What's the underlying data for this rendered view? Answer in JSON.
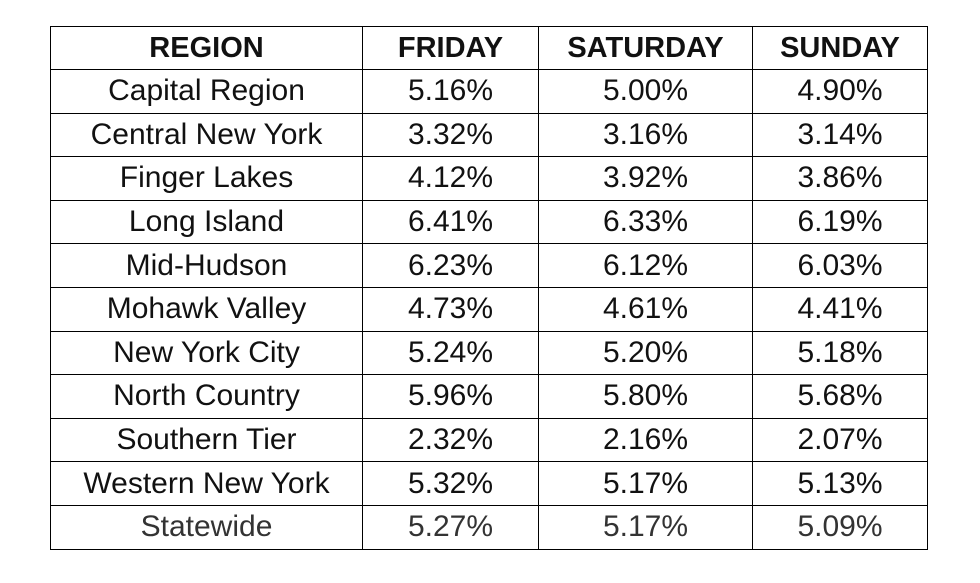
{
  "table": {
    "header": [
      "REGION",
      "FRIDAY",
      "SATURDAY",
      "SUNDAY"
    ],
    "rows": [
      [
        "Capital Region",
        "5.16%",
        "5.00%",
        "4.90%"
      ],
      [
        "Central New York",
        "3.32%",
        "3.16%",
        "3.14%"
      ],
      [
        "Finger Lakes",
        "4.12%",
        "3.92%",
        "3.86%"
      ],
      [
        "Long Island",
        "6.41%",
        "6.33%",
        "6.19%"
      ],
      [
        "Mid-Hudson",
        "6.23%",
        "6.12%",
        "6.03%"
      ],
      [
        "Mohawk Valley",
        "4.73%",
        "4.61%",
        "4.41%"
      ],
      [
        "New York City",
        "5.24%",
        "5.20%",
        "5.18%"
      ],
      [
        "North Country",
        "5.96%",
        "5.80%",
        "5.68%"
      ],
      [
        "Southern Tier",
        "2.32%",
        "2.16%",
        "2.07%"
      ],
      [
        "Western New York",
        "5.32%",
        "5.17%",
        "5.13%"
      ],
      [
        "Statewide",
        "5.27%",
        "5.17%",
        "5.09%"
      ]
    ]
  }
}
